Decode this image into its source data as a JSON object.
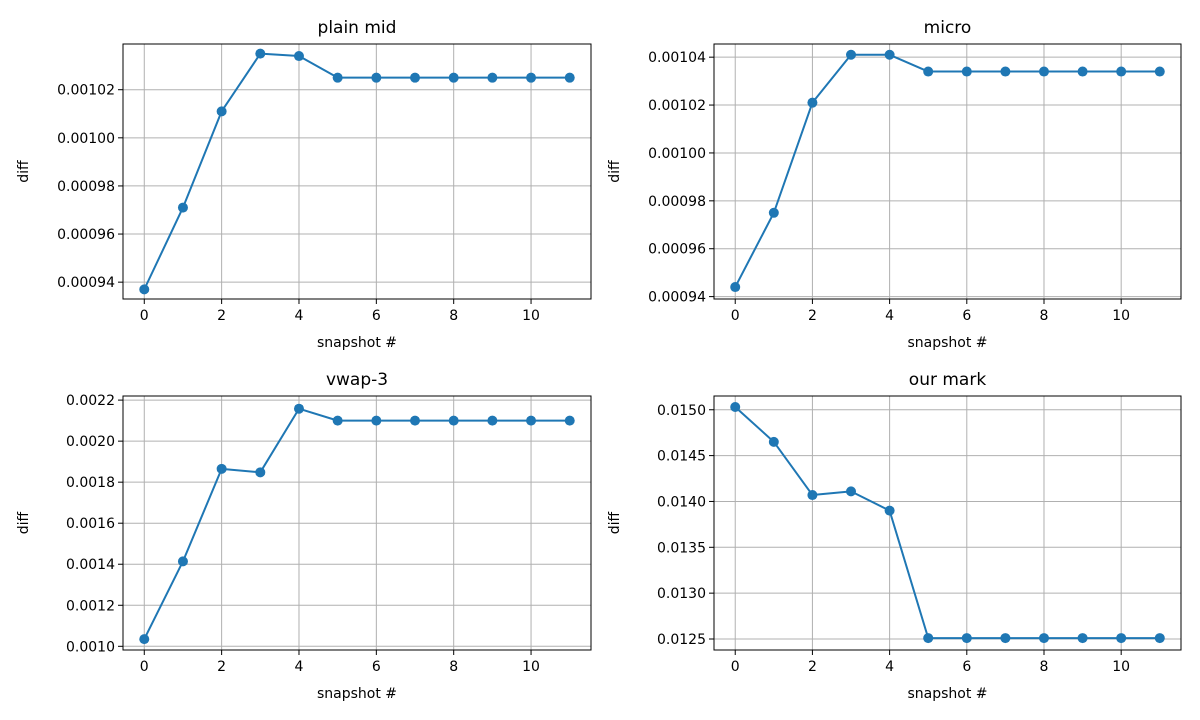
{
  "chart_data": [
    {
      "type": "line",
      "title": "plain mid",
      "xlabel": "snapshot #",
      "ylabel": "diff",
      "x": [
        0,
        1,
        2,
        3,
        4,
        5,
        6,
        7,
        8,
        9,
        10,
        11
      ],
      "values": [
        0.000937,
        0.000971,
        0.001011,
        0.001035,
        0.001034,
        0.001025,
        0.001025,
        0.001025,
        0.001025,
        0.001025,
        0.001025,
        0.001025
      ],
      "xlim": [
        -0.55,
        11.55
      ],
      "ylim": [
        0.000933,
        0.001039
      ],
      "xticks": [
        0,
        2,
        4,
        6,
        8,
        10
      ],
      "xtick_labels": [
        "0",
        "2",
        "4",
        "6",
        "8",
        "10"
      ],
      "yticks": [
        0.00094,
        0.00096,
        0.00098,
        0.001,
        0.00102
      ],
      "ytick_labels": [
        "0.00094",
        "0.00096",
        "0.00098",
        "0.00100",
        "0.00102"
      ],
      "grid": true,
      "color": "#1f77b4",
      "marker": "circle"
    },
    {
      "type": "line",
      "title": "micro",
      "xlabel": "snapshot #",
      "ylabel": "diff",
      "x": [
        0,
        1,
        2,
        3,
        4,
        5,
        6,
        7,
        8,
        9,
        10,
        11
      ],
      "values": [
        0.000944,
        0.000975,
        0.001021,
        0.001041,
        0.001041,
        0.001034,
        0.001034,
        0.001034,
        0.001034,
        0.001034,
        0.001034,
        0.001034
      ],
      "xlim": [
        -0.55,
        11.55
      ],
      "ylim": [
        0.000939,
        0.0010455
      ],
      "xticks": [
        0,
        2,
        4,
        6,
        8,
        10
      ],
      "xtick_labels": [
        "0",
        "2",
        "4",
        "6",
        "8",
        "10"
      ],
      "yticks": [
        0.00094,
        0.00096,
        0.00098,
        0.001,
        0.00102,
        0.00104
      ],
      "ytick_labels": [
        "0.00094",
        "0.00096",
        "0.00098",
        "0.00100",
        "0.00102",
        "0.00104"
      ],
      "grid": true,
      "color": "#1f77b4",
      "marker": "circle"
    },
    {
      "type": "line",
      "title": "vwap-3",
      "xlabel": "snapshot #",
      "ylabel": "diff",
      "x": [
        0,
        1,
        2,
        3,
        4,
        5,
        6,
        7,
        8,
        9,
        10,
        11
      ],
      "values": [
        0.001035,
        0.001414,
        0.001865,
        0.001848,
        0.002158,
        0.0021,
        0.0021,
        0.0021,
        0.0021,
        0.0021,
        0.0021,
        0.0021
      ],
      "xlim": [
        -0.55,
        11.55
      ],
      "ylim": [
        0.000982,
        0.00222
      ],
      "xticks": [
        0,
        2,
        4,
        6,
        8,
        10
      ],
      "xtick_labels": [
        "0",
        "2",
        "4",
        "6",
        "8",
        "10"
      ],
      "yticks": [
        0.001,
        0.0012,
        0.0014,
        0.0016,
        0.0018,
        0.002,
        0.0022
      ],
      "ytick_labels": [
        "0.0010",
        "0.0012",
        "0.0014",
        "0.0016",
        "0.0018",
        "0.0020",
        "0.0022"
      ],
      "grid": true,
      "color": "#1f77b4",
      "marker": "circle"
    },
    {
      "type": "line",
      "title": "our mark",
      "xlabel": "snapshot #",
      "ylabel": "diff",
      "x": [
        0,
        1,
        2,
        3,
        4,
        5,
        6,
        7,
        8,
        9,
        10,
        11
      ],
      "values": [
        0.01503,
        0.01465,
        0.01407,
        0.01411,
        0.0139,
        0.01251,
        0.01251,
        0.01251,
        0.01251,
        0.01251,
        0.01251,
        0.01251
      ],
      "xlim": [
        -0.55,
        11.55
      ],
      "ylim": [
        0.01238,
        0.01515
      ],
      "xticks": [
        0,
        2,
        4,
        6,
        8,
        10
      ],
      "xtick_labels": [
        "0",
        "2",
        "4",
        "6",
        "8",
        "10"
      ],
      "yticks": [
        0.0125,
        0.013,
        0.0135,
        0.014,
        0.0145,
        0.015
      ],
      "ytick_labels": [
        "0.0125",
        "0.0130",
        "0.0135",
        "0.0140",
        "0.0145",
        "0.0150"
      ],
      "grid": true,
      "color": "#1f77b4",
      "marker": "circle"
    }
  ]
}
